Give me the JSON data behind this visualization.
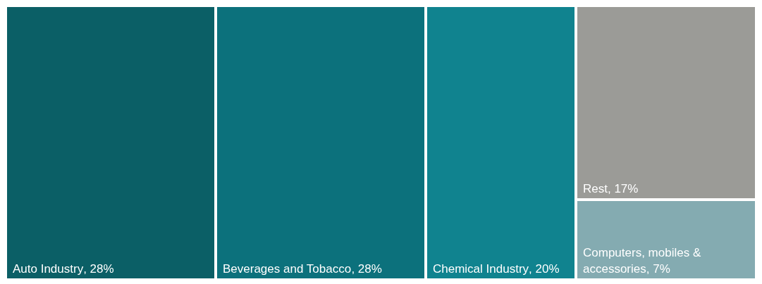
{
  "chart_data": {
    "type": "other",
    "categories": [
      "Auto Industry",
      "Beverages and Tobacco",
      "Chemical Industry",
      "Rest",
      "Computers, mobiles & accessories"
    ],
    "values": [
      28,
      28,
      20,
      17,
      7
    ],
    "value_labels": [
      ", 28%",
      ", 28%",
      ", 20%",
      ", 17%",
      ", 7%"
    ],
    "colors": [
      "#0b5f66",
      "#0c717c",
      "#10838f",
      "#9b9b97",
      "#84abb1"
    ]
  }
}
